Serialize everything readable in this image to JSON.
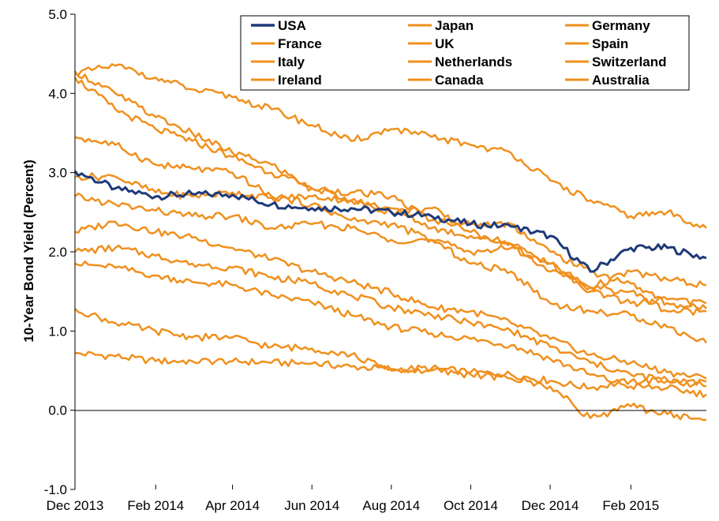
{
  "chart_data": {
    "type": "line",
    "title": "",
    "xlabel": "",
    "ylabel": "10-Year Bond Yield (Percent)",
    "ylim": [
      -1.0,
      5.0
    ],
    "yticks": [
      "5.0",
      "4.0",
      "3.0",
      "2.0",
      "1.0",
      "0.0",
      "-1.0"
    ],
    "x_tick_labels": [
      "Dec 2013",
      "Feb 2014",
      "Apr 2014",
      "Jun 2014",
      "Aug 2014",
      "Oct 2014",
      "Dec 2014",
      "Feb 2015"
    ],
    "x_range": [
      "2013-12-01",
      "2015-03-31"
    ],
    "grid": false,
    "legend_position": "top-right",
    "colors": {
      "usa": "#1f3a7a",
      "others": "#f0901e"
    },
    "x": [
      "2013-12-01",
      "2014-01-01",
      "2014-02-01",
      "2014-03-01",
      "2014-04-01",
      "2014-05-01",
      "2014-06-01",
      "2014-07-01",
      "2014-08-01",
      "2014-09-01",
      "2014-10-01",
      "2014-11-01",
      "2014-12-01",
      "2015-01-01",
      "2015-02-01",
      "2015-03-01",
      "2015-03-31"
    ],
    "series": [
      {
        "name": "USA",
        "color": "#1f3a7a",
        "values": [
          3.02,
          2.8,
          2.7,
          2.73,
          2.72,
          2.6,
          2.55,
          2.55,
          2.5,
          2.45,
          2.35,
          2.32,
          2.2,
          1.75,
          2.05,
          2.05,
          1.92
        ]
      },
      {
        "name": "Japan",
        "color": "#f0901e",
        "values": [
          0.72,
          0.68,
          0.62,
          0.62,
          0.62,
          0.6,
          0.59,
          0.55,
          0.52,
          0.53,
          0.48,
          0.45,
          0.37,
          0.28,
          0.37,
          0.37,
          0.36
        ]
      },
      {
        "name": "Germany",
        "color": "#f0901e",
        "values": [
          1.85,
          1.8,
          1.7,
          1.62,
          1.58,
          1.45,
          1.36,
          1.2,
          1.05,
          0.97,
          0.9,
          0.82,
          0.65,
          0.45,
          0.3,
          0.28,
          0.2
        ]
      },
      {
        "name": "France",
        "color": "#f0901e",
        "values": [
          2.25,
          2.38,
          2.25,
          2.18,
          2.05,
          1.9,
          1.75,
          1.62,
          1.48,
          1.3,
          1.25,
          1.1,
          0.9,
          0.7,
          0.6,
          0.48,
          0.4
        ]
      },
      {
        "name": "UK",
        "color": "#f0901e",
        "values": [
          2.95,
          2.95,
          2.75,
          2.7,
          2.75,
          2.68,
          2.7,
          2.65,
          2.5,
          2.55,
          2.25,
          2.1,
          1.85,
          1.55,
          1.75,
          1.65,
          1.58
        ]
      },
      {
        "name": "Spain",
        "color": "#f0901e",
        "values": [
          4.2,
          3.8,
          3.55,
          3.4,
          3.2,
          3.0,
          2.8,
          2.65,
          2.55,
          2.3,
          2.2,
          2.1,
          1.75,
          1.55,
          1.5,
          1.25,
          1.25
        ]
      },
      {
        "name": "Italy",
        "color": "#f0901e",
        "values": [
          4.28,
          4.0,
          3.7,
          3.5,
          3.25,
          3.1,
          2.8,
          2.75,
          2.7,
          2.4,
          2.35,
          2.35,
          2.0,
          1.75,
          1.6,
          1.35,
          1.28
        ]
      },
      {
        "name": "Netherlands",
        "color": "#f0901e",
        "values": [
          2.0,
          2.05,
          1.95,
          1.85,
          1.8,
          1.68,
          1.6,
          1.45,
          1.3,
          1.2,
          1.1,
          1.0,
          0.8,
          0.6,
          0.45,
          0.38,
          0.3
        ]
      },
      {
        "name": "Switzerland",
        "color": "#f0901e",
        "values": [
          1.28,
          1.1,
          1.0,
          0.92,
          0.92,
          0.8,
          0.78,
          0.7,
          0.5,
          0.5,
          0.45,
          0.4,
          0.3,
          -0.1,
          0.05,
          -0.05,
          -0.12
        ]
      },
      {
        "name": "Ireland",
        "color": "#f0901e",
        "values": [
          3.45,
          3.35,
          3.1,
          3.05,
          3.0,
          2.7,
          2.6,
          2.4,
          2.35,
          2.15,
          1.85,
          1.75,
          1.35,
          1.25,
          1.2,
          1.05,
          0.85
        ]
      },
      {
        "name": "Canada",
        "color": "#f0901e",
        "values": [
          2.7,
          2.6,
          2.52,
          2.45,
          2.45,
          2.3,
          2.35,
          2.3,
          2.15,
          2.15,
          2.0,
          2.05,
          1.85,
          1.5,
          1.35,
          1.4,
          1.35
        ]
      },
      {
        "name": "Australia",
        "color": "#f0901e",
        "values": [
          4.25,
          4.35,
          4.2,
          4.05,
          3.95,
          3.8,
          3.6,
          3.4,
          3.55,
          3.45,
          3.35,
          3.25,
          2.9,
          2.65,
          2.45,
          2.5,
          2.3
        ]
      }
    ]
  }
}
